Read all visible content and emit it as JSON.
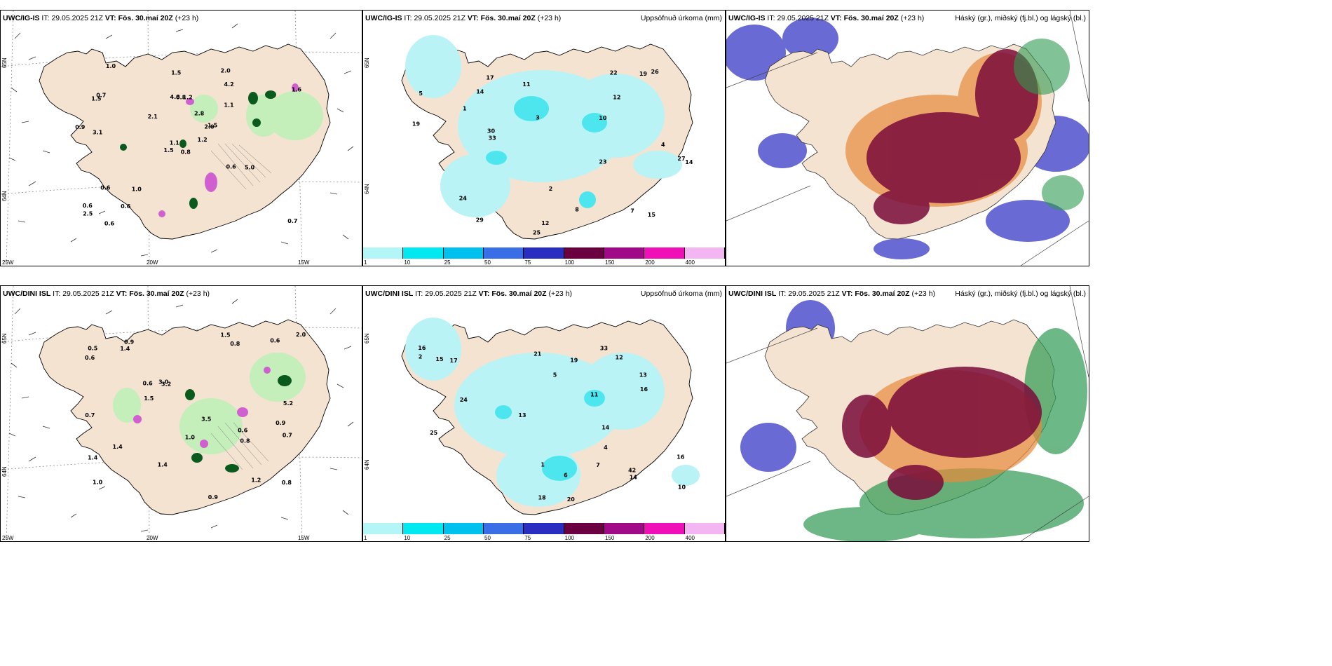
{
  "rows": [
    {
      "model": "UWC/IG-IS",
      "it_label": "IT:",
      "it_value": "29.05.2025 21Z",
      "vt_label": "VT:",
      "vt_value": "Fös. 30.maí 20Z",
      "lead": "(+23 h)",
      "precip_title": "Uppsöfnuð úrkoma (mm)",
      "cloud_title": "Háský (gr.), miðský (fj.bl.) og lágský (bl.)",
      "wind_values": [
        "0.8",
        "1.5",
        "1.1",
        "0.6",
        "2.0",
        "1.0",
        "2.0",
        "1.2",
        "4.2",
        "1.2",
        "1.0",
        "0.7",
        "3.1",
        "1.6",
        "1.5",
        "1.1",
        "0.6",
        "4.8",
        "2.8",
        "0.6",
        "2.1",
        "2.5",
        "0.6",
        "0.8",
        "1.5",
        "5.0",
        "0.7",
        "1.5",
        "0.9",
        "0.6"
      ],
      "precip_values": [
        "5",
        "14",
        "10",
        "12",
        "19",
        "25",
        "23",
        "33",
        "26",
        "14",
        "27",
        "17",
        "12",
        "24",
        "19",
        "29",
        "30",
        "11",
        "15",
        "8",
        "7",
        "4",
        "3",
        "2",
        "22",
        "1"
      ]
    },
    {
      "model": "UWC/DINI ISL",
      "it_label": "IT:",
      "it_value": "29.05.2025 21Z",
      "vt_label": "VT:",
      "vt_value": "Fös. 30.maí 20Z",
      "lead": "(+23 h)",
      "precip_title": "Uppsöfnuð úrkoma (mm)",
      "cloud_title": "Háský (gr.), miðský (fj.bl.) og lágský (bl.)",
      "wind_values": [
        "0.6",
        "0.9",
        "1.0",
        "0.9",
        "3.2",
        "1.2",
        "1.4",
        "0.8",
        "0.6",
        "0.9",
        "0.6",
        "0.7",
        "0.5",
        "0.8",
        "1.4",
        "5.2",
        "1.0",
        "3.5",
        "3.0",
        "1.4",
        "2.0",
        "0.6",
        "1.5",
        "0.7",
        "1.5",
        "1.4",
        "0.8"
      ],
      "precip_values": [
        "5",
        "14",
        "16",
        "13",
        "18",
        "21",
        "20",
        "33",
        "24",
        "25",
        "42",
        "19",
        "14",
        "15",
        "10",
        "12",
        "16",
        "7",
        "6",
        "4",
        "2",
        "1",
        "11",
        "13",
        "16",
        "17"
      ]
    }
  ],
  "axis": {
    "lat_a": "65N",
    "lat_b": "64N",
    "lon_a": "25W",
    "lon_b": "20W",
    "lon_c": "15W"
  },
  "colorbar": {
    "labels": [
      "1",
      "10",
      "25",
      "50",
      "75",
      "100",
      "150",
      "200",
      "400"
    ],
    "colors": [
      "#b4f5f8",
      "#00e8f0",
      "#00c0ee",
      "#3a6ee6",
      "#2a2ec0",
      "#6a0040",
      "#a00a88",
      "#f010b8",
      "#f4b6f2"
    ]
  },
  "colors": {
    "land": "#f4e3d1",
    "precip_light": "#b9f3f6",
    "precip_mid": "#4ee6ee",
    "cloud_high": "#7a0b3a",
    "cloud_mid_orange": "#e88a3c",
    "cloud_low": "#5a5ad0",
    "green": "#2e9a52",
    "wind_green_light": "#bff0b8",
    "wind_green_dark": "#0a5a1e",
    "magenta": "#d060d0"
  }
}
